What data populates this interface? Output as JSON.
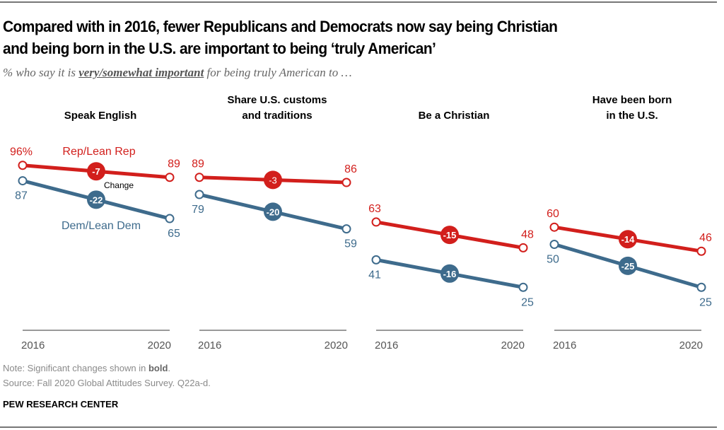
{
  "title_line1": "Compared with in 2016, fewer Republicans and Democrats now say being Christian",
  "title_line2": "and being born in the U.S. are important to being ‘truly American’",
  "subtitle": {
    "prefix": "% who say it is ",
    "emphasis": "very/somewhat important",
    "suffix": " for being truly American to …"
  },
  "note": {
    "prefix": "Note: Significant changes shown in ",
    "bold": "bold",
    "suffix": "."
  },
  "source": "Source: Fall 2020 Global Attitudes Survey. Q22a-d.",
  "brand": "PEW RESEARCH CENTER",
  "colors": {
    "rep": "#d21f1c",
    "dem": "#3e6b8c",
    "axis": "#999999"
  },
  "chart_data": {
    "type": "line",
    "x": [
      "2016",
      "2020"
    ],
    "ylim": [
      0,
      100
    ],
    "legend_labels": {
      "rep": "Rep/Lean Rep",
      "dem": "Dem/Lean Dem",
      "change": "Change"
    },
    "panels": [
      {
        "title": [
          "Speak English"
        ],
        "series": [
          {
            "name": "Rep/Lean Rep",
            "values": [
              96,
              89
            ],
            "change": "-7",
            "significant": true,
            "first_label": "96%"
          },
          {
            "name": "Dem/Lean Dem",
            "values": [
              87,
              65
            ],
            "change": "-22",
            "significant": true
          }
        ]
      },
      {
        "title": [
          "Share U.S. customs",
          "and traditions"
        ],
        "series": [
          {
            "name": "Rep/Lean Rep",
            "values": [
              89,
              86
            ],
            "change": "-3",
            "significant": false
          },
          {
            "name": "Dem/Lean Dem",
            "values": [
              79,
              59
            ],
            "change": "-20",
            "significant": true
          }
        ]
      },
      {
        "title": [
          "Be a Christian"
        ],
        "series": [
          {
            "name": "Rep/Lean Rep",
            "values": [
              63,
              48
            ],
            "change": "-15",
            "significant": true
          },
          {
            "name": "Dem/Lean Dem",
            "values": [
              41,
              25
            ],
            "change": "-16",
            "significant": true
          }
        ]
      },
      {
        "title": [
          "Have been born",
          "in the U.S."
        ],
        "series": [
          {
            "name": "Rep/Lean Rep",
            "values": [
              60,
              46
            ],
            "change": "-14",
            "significant": true
          },
          {
            "name": "Dem/Lean Dem",
            "values": [
              50,
              25
            ],
            "change": "-25",
            "significant": true
          }
        ]
      }
    ]
  }
}
